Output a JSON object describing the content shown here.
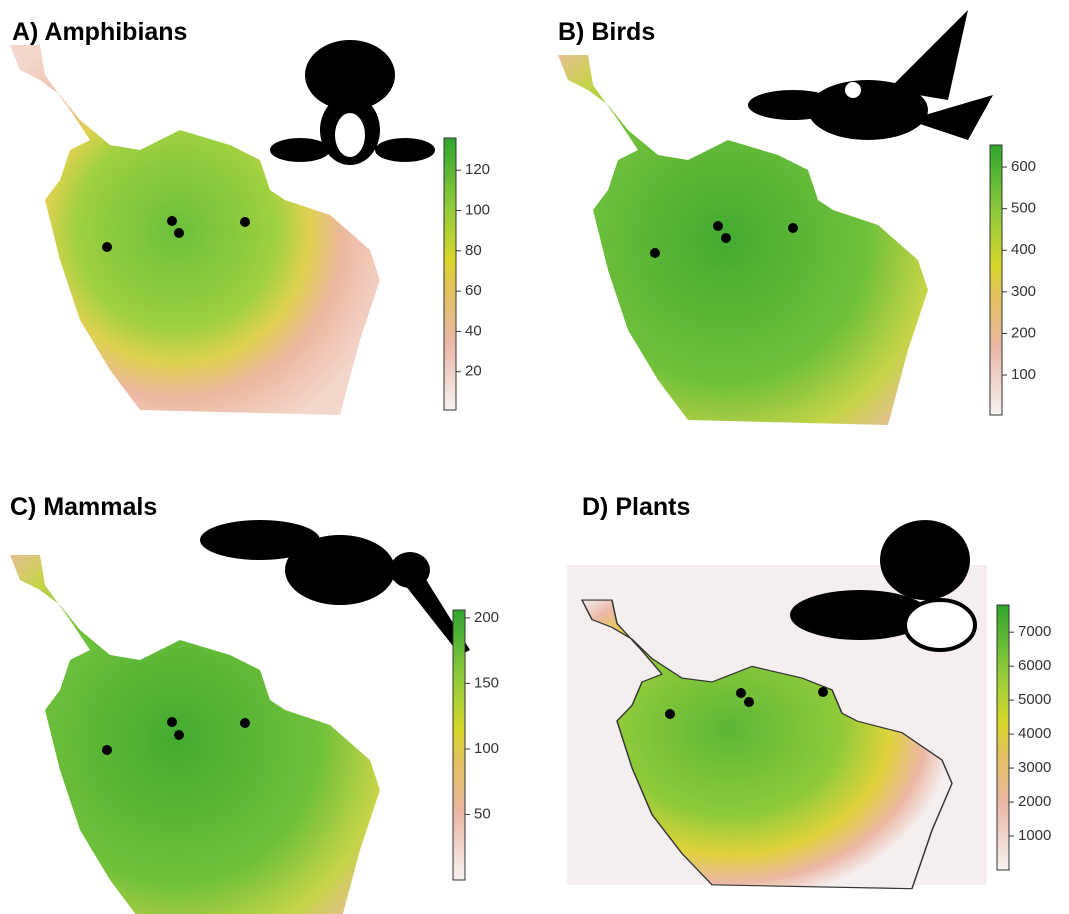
{
  "panels": [
    {
      "title": "A) Amphibians",
      "colorbar": {
        "lim": [
          1,
          136
        ],
        "ticks": [
          20,
          40,
          60,
          80,
          100,
          120
        ]
      }
    },
    {
      "title": "B) Birds",
      "colorbar": {
        "lim": [
          4,
          653
        ],
        "ticks": [
          100,
          200,
          300,
          400,
          500,
          600
        ]
      }
    },
    {
      "title": "C) Mammals",
      "colorbar": {
        "lim": [
          0,
          206
        ],
        "ticks": [
          50,
          100,
          150,
          200
        ]
      }
    },
    {
      "title": "D) Plants",
      "colorbar": {
        "lim": [
          0,
          7800
        ],
        "ticks": [
          1000,
          2000,
          3000,
          4000,
          5000,
          6000,
          7000
        ]
      }
    }
  ]
}
